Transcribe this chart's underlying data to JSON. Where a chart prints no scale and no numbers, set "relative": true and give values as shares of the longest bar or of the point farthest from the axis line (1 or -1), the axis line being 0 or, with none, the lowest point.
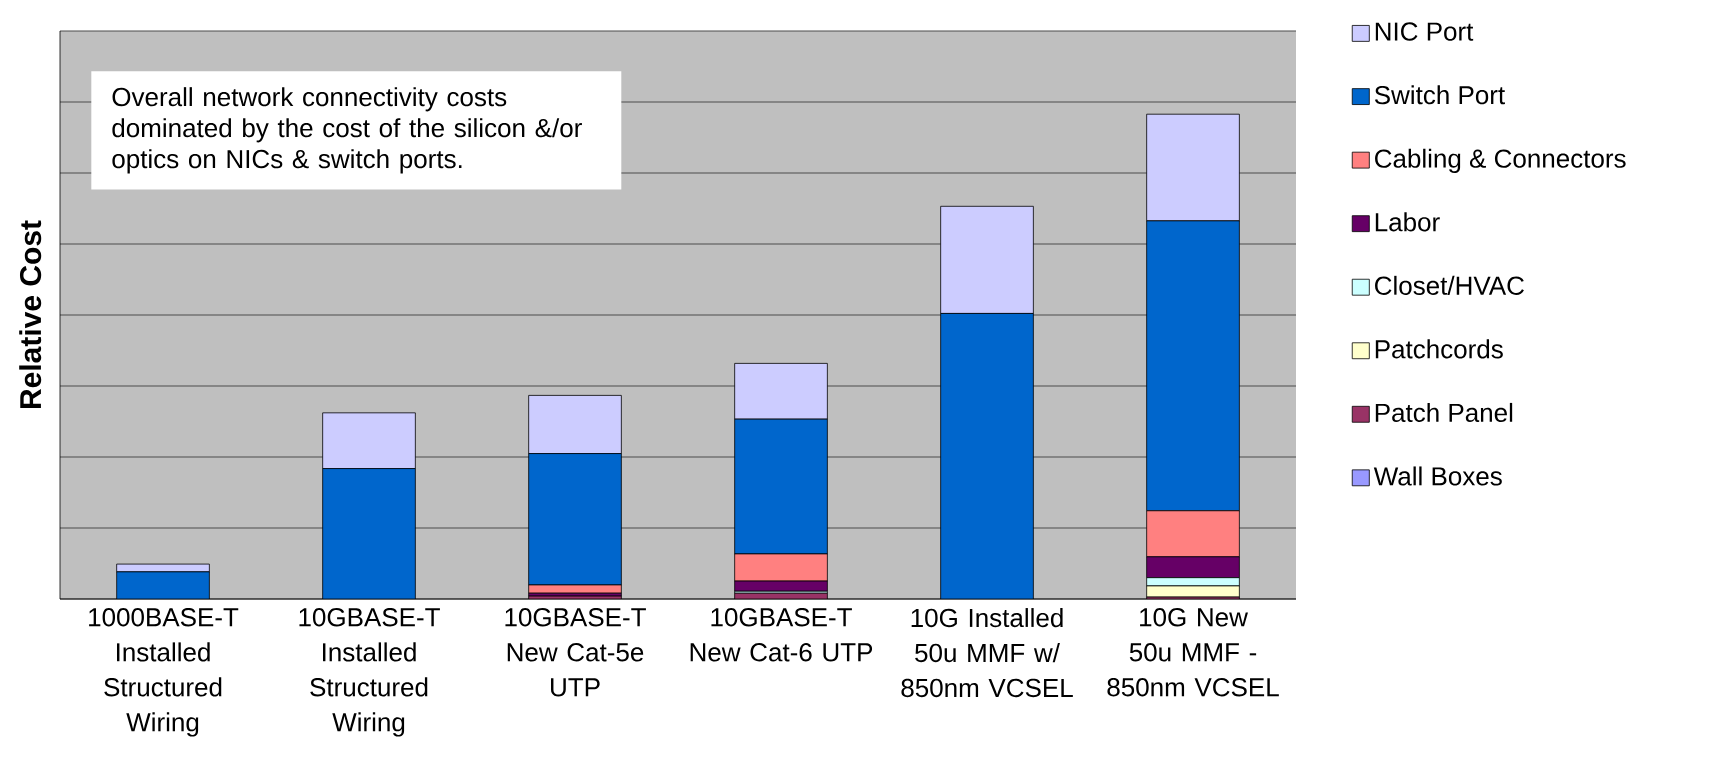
{
  "chart_data": {
    "type": "bar",
    "stacked": true,
    "relative": true,
    "ylabel": "Relative Cost",
    "categories": [
      "1000BASE-T Installed Structured Wiring",
      "10GBASE-T Installed Structured Wiring",
      "10GBASE-T New Cat-5e UTP",
      "10GBASE-T New Cat-6 UTP",
      "10G Installed 50u MMF w/ 850nm VCSEL",
      "10G New 50u MMF - 850nm VCSEL"
    ],
    "series": [
      {
        "name": "Wall Boxes",
        "color": "#9999ff",
        "values": [
          0,
          0,
          0,
          0,
          0,
          0
        ]
      },
      {
        "name": "Patch Panel",
        "color": "#993366",
        "values": [
          0,
          0,
          0.006,
          0.012,
          0,
          0.004
        ]
      },
      {
        "name": "Patchcords",
        "color": "#ffffcc",
        "values": [
          0,
          0,
          0,
          0,
          0,
          0.023
        ]
      },
      {
        "name": "Closet/HVAC",
        "color": "#ccffff",
        "values": [
          0,
          0,
          0,
          0.004,
          0,
          0.017
        ]
      },
      {
        "name": "Labor",
        "color": "#660066",
        "values": [
          0,
          0,
          0.006,
          0.021,
          0,
          0.043
        ]
      },
      {
        "name": "Cabling & Connectors",
        "color": "#ff8080",
        "values": [
          0,
          0,
          0.017,
          0.056,
          0,
          0.095
        ]
      },
      {
        "name": "Switch Port",
        "color": "#0066cc",
        "values": [
          0.056,
          0.269,
          0.271,
          0.278,
          0.589,
          0.598
        ]
      },
      {
        "name": "NIC Port",
        "color": "#ccccff",
        "values": [
          0.016,
          0.115,
          0.12,
          0.115,
          0.221,
          0.22
        ]
      }
    ],
    "annotations": [
      "Overall network connectivity costs dominated by the cost of the silicon &/or optics on NICs & switch ports."
    ],
    "grid": "y",
    "legend": "right"
  }
}
